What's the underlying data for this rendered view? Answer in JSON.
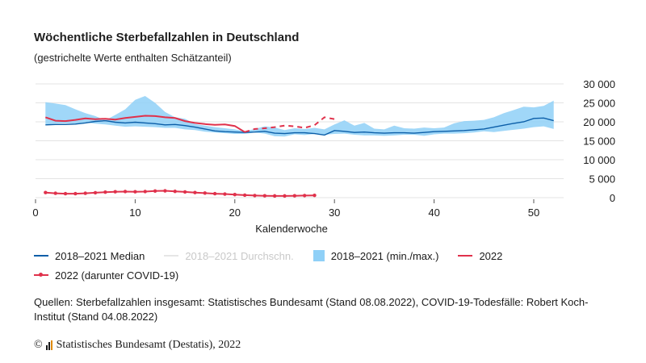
{
  "header": {
    "title": "Wöchentliche Sterbefallzahlen in Deutschland",
    "subtitle": "(gestrichelte Werte enthalten Schätzanteil)"
  },
  "legend": {
    "median": "2018–2021 Median",
    "mean": "2018–2021 Durchschn.",
    "range": "2018–2021 (min./max.)",
    "y2022": "2022",
    "covid": "2022 (darunter COVID-19)"
  },
  "source": "Quellen: Sterbefallzahlen insgesamt: Statistisches Bundesamt (Stand 08.08.2022), COVID-19-Todesfälle: Robert Koch-Institut (Stand 04.08.2022)",
  "copyright": {
    "symbol": "©",
    "text": "Statistisches Bundesamt (Destatis), 2022"
  },
  "colors": {
    "median": "#0b5ea8",
    "range": "#8fd0f7",
    "y2022": "#e0314b",
    "grid": "#e3e3e3",
    "mean": "#e6e6e6"
  },
  "chart_data": {
    "type": "line",
    "xlabel": "Kalenderwoche",
    "ylabel": "",
    "xlim": [
      0,
      53
    ],
    "ylim": [
      0,
      30000
    ],
    "xticks": [
      0,
      10,
      20,
      30,
      40,
      50
    ],
    "yticks": [
      0,
      5000,
      10000,
      15000,
      20000,
      25000,
      30000
    ],
    "ytick_labels": [
      "0",
      "5 000",
      "10 000",
      "15 000",
      "20 000",
      "25 000",
      "30 000"
    ],
    "grid": true,
    "legend_position": "bottom",
    "x": [
      1,
      2,
      3,
      4,
      5,
      6,
      7,
      8,
      9,
      10,
      11,
      12,
      13,
      14,
      15,
      16,
      17,
      18,
      19,
      20,
      21,
      22,
      23,
      24,
      25,
      26,
      27,
      28,
      29,
      30,
      31,
      32,
      33,
      34,
      35,
      36,
      37,
      38,
      39,
      40,
      41,
      42,
      43,
      44,
      45,
      46,
      47,
      48,
      49,
      50,
      51,
      52
    ],
    "series": [
      {
        "name": "2018–2021 (min./max.)",
        "kind": "range",
        "min": [
          19200,
          19500,
          19600,
          19500,
          19800,
          19500,
          19300,
          19000,
          18700,
          18800,
          18700,
          18600,
          18400,
          18400,
          18000,
          17800,
          17400,
          17200,
          17000,
          16800,
          16800,
          17200,
          16900,
          16200,
          16100,
          16700,
          16500,
          16800,
          16600,
          16800,
          16900,
          16600,
          16400,
          16400,
          16300,
          16400,
          16600,
          16600,
          16300,
          16700,
          16900,
          16900,
          17000,
          17200,
          17500,
          17300,
          17600,
          17900,
          18200,
          18600,
          18800,
          18100
        ],
        "max": [
          25200,
          24800,
          24400,
          23300,
          22300,
          21500,
          20400,
          21800,
          23300,
          25800,
          26800,
          25000,
          22600,
          21200,
          20800,
          19400,
          19000,
          18600,
          18300,
          18000,
          17500,
          18100,
          18800,
          18500,
          17800,
          18300,
          18100,
          18400,
          18000,
          19300,
          20400,
          19000,
          19700,
          18200,
          18000,
          19000,
          18300,
          18200,
          18500,
          18300,
          18500,
          19600,
          20200,
          20300,
          20500,
          21200,
          22300,
          23100,
          24000,
          23800,
          24200,
          25600
        ]
      },
      {
        "name": "2018–2021 Median",
        "values": [
          19200,
          19300,
          19300,
          19400,
          19700,
          20100,
          20300,
          19900,
          19700,
          19900,
          19700,
          19500,
          19200,
          19300,
          19000,
          18600,
          18100,
          17600,
          17400,
          17300,
          17200,
          17300,
          17500,
          17000,
          16900,
          17100,
          17100,
          16900,
          16500,
          17700,
          17500,
          17200,
          17300,
          17100,
          17000,
          17100,
          17100,
          17000,
          17200,
          17400,
          17500,
          17600,
          17700,
          17900,
          18100,
          18600,
          19100,
          19600,
          20000,
          20900,
          21000,
          20300
        ]
      },
      {
        "name": "2022",
        "values": [
          21200,
          20300,
          20200,
          20500,
          20900,
          20700,
          20800,
          20600,
          21000,
          21300,
          21600,
          21500,
          21200,
          21000,
          20200,
          19700,
          19400,
          19200,
          19300,
          18900,
          17300,
          null,
          null,
          null,
          null,
          null,
          null,
          null,
          null,
          null,
          null,
          null,
          null,
          null,
          null,
          null,
          null,
          null,
          null,
          null,
          null,
          null,
          null,
          null,
          null,
          null,
          null,
          null,
          null,
          null,
          null,
          null
        ],
        "estimated": [
          null,
          null,
          null,
          null,
          null,
          null,
          null,
          null,
          null,
          null,
          null,
          null,
          null,
          null,
          null,
          null,
          null,
          null,
          null,
          null,
          17300,
          18100,
          18300,
          18600,
          19000,
          18800,
          18400,
          19100,
          21200,
          20700,
          null,
          null,
          null,
          null,
          null,
          null,
          null,
          null,
          null,
          null,
          null,
          null,
          null,
          null,
          null,
          null,
          null,
          null,
          null,
          null,
          null,
          null
        ]
      },
      {
        "name": "2022 (darunter COVID-19)",
        "markers": true,
        "values": [
          1350,
          1150,
          1050,
          1050,
          1150,
          1300,
          1450,
          1550,
          1600,
          1550,
          1600,
          1750,
          1800,
          1650,
          1500,
          1350,
          1200,
          1050,
          950,
          800,
          650,
          550,
          500,
          450,
          450,
          500,
          550,
          600,
          null,
          null,
          null,
          null,
          null,
          null,
          null,
          null,
          null,
          null,
          null,
          null,
          null,
          null,
          null,
          null,
          null,
          null,
          null,
          null,
          null,
          null,
          null,
          null
        ]
      }
    ]
  }
}
